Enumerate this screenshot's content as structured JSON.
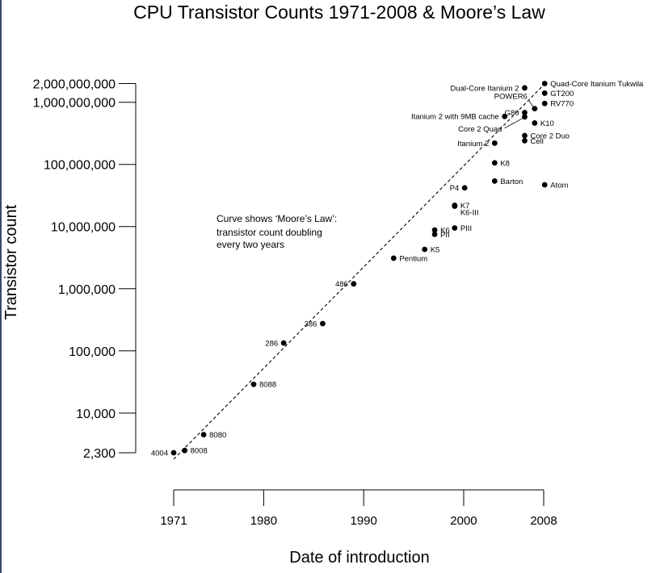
{
  "chart_data": {
    "type": "scatter",
    "title": "CPU Transistor Counts 1971-2008 & Moore’s Law",
    "xlabel": "Date of introduction",
    "ylabel": "Transistor count",
    "yscale": "log",
    "xlim": [
      1971,
      2008
    ],
    "ylim": [
      2300,
      2000000000
    ],
    "grid": false,
    "xticks": [
      "1971",
      "1980",
      "1990",
      "2000",
      "2008"
    ],
    "yticks": [
      {
        "value": 2300,
        "label": "2,300"
      },
      {
        "value": 10000,
        "label": "10,000"
      },
      {
        "value": 100000,
        "label": "100,000"
      },
      {
        "value": 1000000,
        "label": "1,000,000"
      },
      {
        "value": 10000000,
        "label": "10,000,000"
      },
      {
        "value": 100000000,
        "label": "100,000,000"
      },
      {
        "value": 1000000000,
        "label": "1,000,000,000"
      },
      {
        "value": 2000000000,
        "label": "2,000,000,000"
      }
    ],
    "annotation": [
      "Curve shows ‘Moore’s Law’:",
      "transistor count doubling",
      "every two years"
    ],
    "moores_law": {
      "start": [
        1971,
        2300
      ],
      "end": [
        2008,
        1900000000
      ]
    },
    "points": [
      {
        "label": "4004",
        "x": 1971,
        "y": 2300,
        "side": "left"
      },
      {
        "label": "8008",
        "x": 1972.1,
        "y": 2500,
        "side": "right"
      },
      {
        "label": "8080",
        "x": 1974,
        "y": 4500,
        "side": "right"
      },
      {
        "label": "8088",
        "x": 1979,
        "y": 29000,
        "side": "right"
      },
      {
        "label": "286",
        "x": 1982,
        "y": 134000,
        "side": "left"
      },
      {
        "label": "386",
        "x": 1985.9,
        "y": 275000,
        "side": "left"
      },
      {
        "label": "486",
        "x": 1989,
        "y": 1200000,
        "side": "left"
      },
      {
        "label": "Pentium",
        "x": 1993,
        "y": 3100000,
        "side": "right"
      },
      {
        "label": "K5",
        "x": 1996.1,
        "y": 4300000,
        "side": "right"
      },
      {
        "label": "K6",
        "x": 1997.1,
        "y": 8800000,
        "side": "right"
      },
      {
        "label": "PII",
        "x": 1997.1,
        "y": 7500000,
        "side": "right"
      },
      {
        "label": "PIII",
        "x": 1999.1,
        "y": 9500000,
        "side": "right"
      },
      {
        "label": "K7",
        "x": 1999.1,
        "y": 22000000,
        "side": "right"
      },
      {
        "label": "K6-III",
        "x": 1999.1,
        "y": 21300000,
        "side": "right-below"
      },
      {
        "label": "P4",
        "x": 2000.1,
        "y": 42000000,
        "side": "left"
      },
      {
        "label": "Barton",
        "x": 2003.1,
        "y": 54000000,
        "side": "right"
      },
      {
        "label": "K8",
        "x": 2003.1,
        "y": 105900000,
        "side": "right"
      },
      {
        "label": "Itanium 2",
        "x": 2003.1,
        "y": 220000000,
        "side": "left"
      },
      {
        "label": "Core 2 Duo",
        "x": 2006.1,
        "y": 291000000,
        "side": "right"
      },
      {
        "label": "Cell",
        "x": 2006.1,
        "y": 241000000,
        "side": "right"
      },
      {
        "label": "K10",
        "x": 2007.1,
        "y": 463000000,
        "side": "right"
      },
      {
        "label": "Core 2 Quad",
        "x": 2006.1,
        "y": 582000000,
        "side": "left-low"
      },
      {
        "label": "Itanium 2 with 9MB cache",
        "x": 2004.1,
        "y": 592000000,
        "side": "left"
      },
      {
        "label": "G80",
        "x": 2006.1,
        "y": 681000000,
        "side": "left"
      },
      {
        "label": "POWER6",
        "x": 2007.1,
        "y": 789000000,
        "side": "left-up"
      },
      {
        "label": "Dual-Core Itanium 2",
        "x": 2006.1,
        "y": 1700000000,
        "side": "left"
      },
      {
        "label": "Quad-Core Itanium Tukwila",
        "x": 2008.1,
        "y": 2000000000,
        "side": "right"
      },
      {
        "label": "GT200",
        "x": 2008.1,
        "y": 1400000000,
        "side": "right"
      },
      {
        "label": "RV770",
        "x": 2008.1,
        "y": 956000000,
        "side": "right"
      },
      {
        "label": "Atom",
        "x": 2008.1,
        "y": 47000000,
        "side": "right"
      }
    ]
  }
}
